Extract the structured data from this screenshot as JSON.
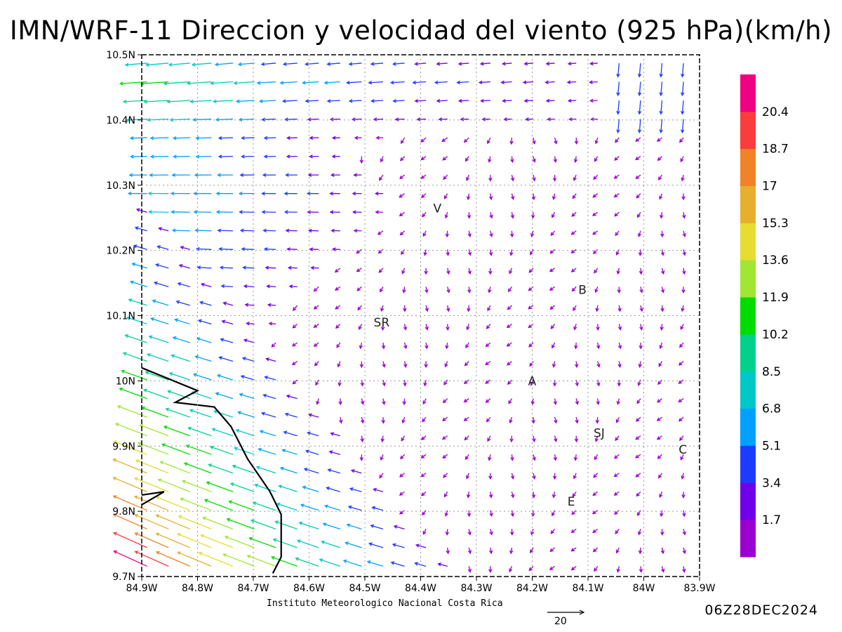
{
  "chart_data": {
    "type": "vector",
    "title": "IMN/WRF-11 Direccion y velocidad del viento (925 hPa)(km/h)",
    "xlabel": "",
    "ylabel": "",
    "xlim": [
      -84.9,
      -83.9
    ],
    "ylim": [
      9.7,
      10.5
    ],
    "x_tick_labels": [
      "84.9W",
      "84.8W",
      "84.7W",
      "84.6W",
      "84.5W",
      "84.4W",
      "84.3W",
      "84.2W",
      "84.1W",
      "84W",
      "83.9W"
    ],
    "y_tick_labels": [
      "9.7N",
      "9.8N",
      "9.9N",
      "10N",
      "10.1N",
      "10.2N",
      "10.3N",
      "10.4N",
      "10.5N"
    ],
    "grid": true,
    "colorbar": {
      "levels": [
        "1.7",
        "3.4",
        "5.1",
        "6.8",
        "8.5",
        "10.2",
        "11.9",
        "13.6",
        "15.3",
        "17",
        "18.7",
        "20.4"
      ],
      "colors": [
        "#9a00d0",
        "#7000e8",
        "#1e3cff",
        "#00a0ff",
        "#00c8c8",
        "#00d28c",
        "#00dc00",
        "#a0e632",
        "#e6dc32",
        "#e6af2d",
        "#f08228",
        "#fa3c3c",
        "#f00082"
      ]
    },
    "reference_vector": "20",
    "cities": [
      {
        "label": "V",
        "lon": -84.37,
        "lat": 10.265
      },
      {
        "label": "B",
        "lon": -84.11,
        "lat": 10.14
      },
      {
        "label": "SR",
        "lon": -84.47,
        "lat": 10.09
      },
      {
        "label": "A",
        "lon": -84.2,
        "lat": 10.0
      },
      {
        "label": "SJ",
        "lon": -84.08,
        "lat": 9.92
      },
      {
        "label": "C",
        "lon": -83.93,
        "lat": 9.895
      },
      {
        "label": "E",
        "lon": -84.13,
        "lat": 9.815
      }
    ],
    "coastline": [
      [
        -84.9,
        10.02
      ],
      [
        -84.8,
        9.985
      ],
      [
        -84.84,
        9.967
      ],
      [
        -84.77,
        9.96
      ],
      [
        -84.74,
        9.93
      ],
      [
        -84.71,
        9.88
      ],
      [
        -84.67,
        9.83
      ],
      [
        -84.65,
        9.795
      ],
      [
        -84.65,
        9.73
      ],
      [
        -84.665,
        9.705
      ]
    ],
    "coastline2": [
      [
        -84.9,
        9.81
      ],
      [
        -84.86,
        9.83
      ],
      [
        -84.9,
        9.825
      ]
    ]
  },
  "footer": {
    "credit": "Instituto Meteorologico Nacional Costa Rica",
    "datetime": "06Z28DEC2024"
  }
}
